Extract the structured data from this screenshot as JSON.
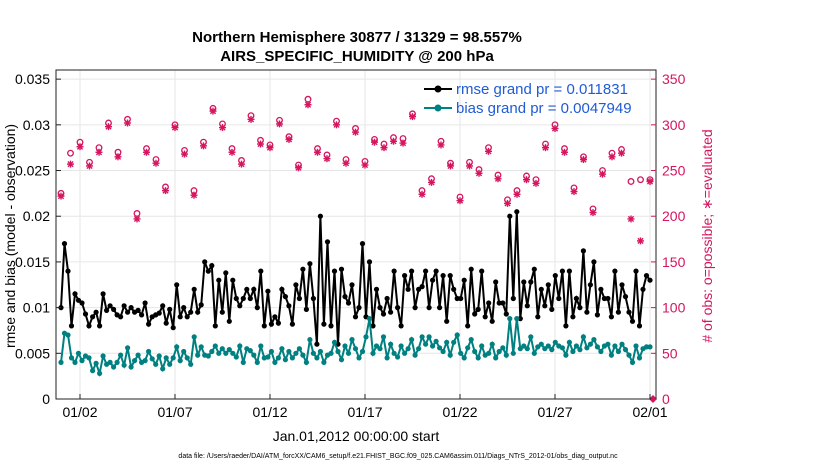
{
  "chart_data": {
    "type": "line",
    "title": "Northern Hemisphere 30877 / 31329 = 98.557%",
    "subtitle": "AIRS_SPECIFIC_HUMIDITY @ 200 hPa",
    "xlabel": "Jan.01,2012 00:00:00 start",
    "ylabel": "rmse and bias (model - observation)",
    "y2label": "# of obs: o=possible; ∗=evaluated",
    "footnote": "data file: /Users/raeder/DAI/ATM_forcXX/CAM6_setup/f.e21.FHIST_BGC.f09_025.CAM6assim.011/Diags_NTrS_2012-01/obs_diag_output.nc",
    "xlim": [
      0,
      31.5
    ],
    "ylim": [
      0,
      0.036
    ],
    "y2lim": [
      0,
      360
    ],
    "x_tick_values": [
      1,
      6,
      11,
      16,
      21,
      26,
      31
    ],
    "x_tick_labels": [
      "01/02",
      "01/07",
      "01/12",
      "01/17",
      "01/22",
      "01/27",
      "02/01"
    ],
    "y_tick_values": [
      0,
      0.005,
      0.01,
      0.015,
      0.02,
      0.025,
      0.03,
      0.035
    ],
    "y_tick_labels": [
      "0",
      "0.005",
      "0.01",
      "0.015",
      "0.02",
      "0.025",
      "0.03",
      "0.035"
    ],
    "y2_tick_values": [
      0,
      50,
      100,
      150,
      200,
      250,
      300,
      350
    ],
    "y2_tick_labels": [
      "0",
      "50",
      "100",
      "150",
      "200",
      "250",
      "300",
      "350"
    ],
    "grid": true,
    "legend_position": "top-right",
    "colors": {
      "rmse": "#000000",
      "bias": "#008080",
      "obs": "#d6155f",
      "legend_text": "#1f5bd6"
    },
    "series": [
      {
        "name": "rmse grand pr = 0.011831",
        "axis": "left",
        "values": [
          0.01,
          0.017,
          0.014,
          0.008,
          0.0115,
          0.0108,
          0.0105,
          0.0093,
          0.008,
          0.009,
          0.0095,
          0.008,
          0.0115,
          0.0097,
          0.0102,
          0.0098,
          0.0092,
          0.009,
          0.0102,
          0.0095,
          0.01,
          0.0095,
          0.0097,
          0.0092,
          0.0105,
          0.0082,
          0.009,
          0.0092,
          0.0094,
          0.0102,
          0.0083,
          0.0098,
          0.0078,
          0.0125,
          0.009,
          0.01,
          0.009,
          0.0095,
          0.012,
          0.0095,
          0.0103,
          0.015,
          0.014,
          0.0146,
          0.008,
          0.013,
          0.0095,
          0.0138,
          0.0085,
          0.013,
          0.011,
          0.0102,
          0.011,
          0.012,
          0.011,
          0.012,
          0.01,
          0.014,
          0.008,
          0.0118,
          0.0082,
          0.009,
          0.0083,
          0.012,
          0.0112,
          0.0102,
          0.0082,
          0.0125,
          0.011,
          0.0142,
          0.0098,
          0.0148,
          0.011,
          0.006,
          0.02,
          0.0082,
          0.0172,
          0.008,
          0.014,
          0.006,
          0.0142,
          0.0112,
          0.0105,
          0.0125,
          0.009,
          0.01,
          0.017,
          0.009,
          0.015,
          0.008,
          0.012,
          0.01,
          0.0093,
          0.011,
          0.0095,
          0.014,
          0.01,
          0.008,
          0.0135,
          0.012,
          0.014,
          0.01,
          0.012,
          0.0123,
          0.014,
          0.01,
          0.013,
          0.014,
          0.01,
          0.0135,
          0.0085,
          0.0135,
          0.012,
          0.011,
          0.011,
          0.013,
          0.008,
          0.0142,
          0.0093,
          0.0098,
          0.014,
          0.009,
          0.0105,
          0.0085,
          0.0128,
          0.0105,
          0.0105,
          0.0093,
          0.02,
          0.011,
          0.0205,
          0.0088,
          0.0128,
          0.0102,
          0.0128,
          0.0142,
          0.009,
          0.012,
          0.0102,
          0.0125,
          0.0098,
          0.0135,
          0.011,
          0.014,
          0.008,
          0.014,
          0.009,
          0.011,
          0.01,
          0.0162,
          0.0095,
          0.0125,
          0.015,
          0.0092,
          0.012,
          0.011,
          0.011,
          0.009,
          0.014,
          0.0095,
          0.0125,
          0.0112,
          0.0095,
          0.0085,
          0.014,
          0.008,
          0.012,
          0.0135,
          0.013
        ]
      },
      {
        "name": "bias grand pr = 0.0047949",
        "axis": "left",
        "values": [
          0.004,
          0.0072,
          0.007,
          0.0045,
          0.004,
          0.005,
          0.0042,
          0.0047,
          0.0045,
          0.0031,
          0.0039,
          0.0028,
          0.0047,
          0.0038,
          0.004,
          0.0035,
          0.004,
          0.0048,
          0.0037,
          0.0056,
          0.0035,
          0.0042,
          0.0048,
          0.004,
          0.0042,
          0.0052,
          0.0044,
          0.0038,
          0.0047,
          0.0033,
          0.0045,
          0.0038,
          0.0045,
          0.0057,
          0.0042,
          0.0052,
          0.0045,
          0.0038,
          0.0068,
          0.0048,
          0.0057,
          0.0048,
          0.0047,
          0.0052,
          0.0058,
          0.005,
          0.0055,
          0.005,
          0.0054,
          0.005,
          0.0046,
          0.0058,
          0.004,
          0.0055,
          0.0053,
          0.0048,
          0.004,
          0.0058,
          0.0045,
          0.0046,
          0.0052,
          0.004,
          0.0045,
          0.0055,
          0.0043,
          0.0052,
          0.0045,
          0.005,
          0.0055,
          0.0048,
          0.004,
          0.0065,
          0.005,
          0.0045,
          0.0052,
          0.004,
          0.0048,
          0.005,
          0.0062,
          0.0052,
          0.0043,
          0.0058,
          0.005,
          0.0065,
          0.0055,
          0.0045,
          0.0052,
          0.0068,
          0.0088,
          0.005,
          0.0058,
          0.0055,
          0.0068,
          0.0045,
          0.006,
          0.005,
          0.0046,
          0.0058,
          0.005,
          0.0055,
          0.0065,
          0.0048,
          0.0055,
          0.0068,
          0.006,
          0.0068,
          0.0058,
          0.0063,
          0.0056,
          0.0052,
          0.0062,
          0.0048,
          0.0062,
          0.007,
          0.005,
          0.0045,
          0.0056,
          0.0065,
          0.0052,
          0.0045,
          0.0058,
          0.0048,
          0.005,
          0.006,
          0.0045,
          0.0052,
          0.0056,
          0.0048,
          0.0088,
          0.005,
          0.0088,
          0.0055,
          0.0058,
          0.0055,
          0.0068,
          0.005,
          0.0057,
          0.006,
          0.0055,
          0.0058,
          0.0054,
          0.0062,
          0.0058,
          0.0056,
          0.0048,
          0.0062,
          0.0052,
          0.0058,
          0.0054,
          0.0068,
          0.0056,
          0.006,
          0.0065,
          0.0057,
          0.0052,
          0.0058,
          0.006,
          0.0048,
          0.0058,
          0.0052,
          0.006,
          0.0054,
          0.0048,
          0.004,
          0.0058,
          0.0045,
          0.0055,
          0.0057,
          0.0057
        ]
      }
    ],
    "obs_x": [
      0,
      0.5,
      1,
      1.5,
      2,
      2.5,
      3,
      3.5,
      4,
      4.5,
      5,
      5.5,
      6,
      6.5,
      7,
      7.5,
      8,
      8.5,
      9,
      9.5,
      10,
      10.5,
      11,
      11.5,
      12,
      12.5,
      13,
      13.5,
      14,
      14.5,
      15,
      15.5,
      16,
      16.5,
      17,
      17.5,
      18,
      18.5,
      19,
      19.5,
      20,
      20.5,
      21,
      21.5,
      22,
      22.5,
      23,
      23.5,
      24,
      24.5,
      25,
      25.5,
      26,
      26.5,
      27,
      27.5,
      28,
      28.5,
      29,
      29.5,
      30,
      30.5,
      31
    ],
    "obs_possible": [
      225,
      269,
      281,
      259,
      275,
      302,
      270,
      306,
      203,
      274,
      262,
      232,
      300,
      272,
      228,
      281,
      318,
      301,
      274,
      261,
      310,
      283,
      278,
      305,
      287,
      256,
      328,
      274,
      267,
      304,
      262,
      296,
      260,
      284,
      279,
      286,
      285,
      312,
      228,
      241,
      282,
      258,
      221,
      259,
      251,
      275,
      245,
      218,
      228,
      244,
      240,
      279,
      300,
      274,
      231,
      265,
      208,
      250,
      269,
      273,
      238,
      240,
      240
    ],
    "obs_evaluated": [
      222,
      257,
      276,
      255,
      270,
      298,
      265,
      302,
      197,
      270,
      258,
      228,
      297,
      268,
      223,
      277,
      315,
      297,
      270,
      257,
      306,
      279,
      275,
      301,
      284,
      253,
      322,
      270,
      263,
      300,
      258,
      292,
      256,
      281,
      275,
      282,
      280,
      309,
      224,
      237,
      278,
      255,
      217,
      255,
      247,
      271,
      241,
      214,
      224,
      240,
      236,
      275,
      296,
      270,
      227,
      262,
      204,
      246,
      265,
      269,
      197,
      173,
      238
    ]
  }
}
